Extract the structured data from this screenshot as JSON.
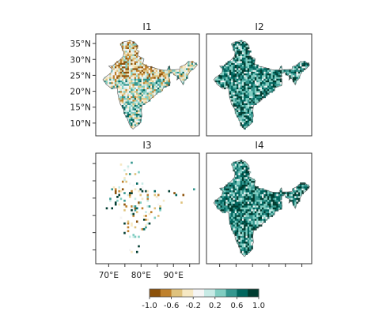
{
  "panels": [
    {
      "id": "I1",
      "title": "I1",
      "style": "mixed"
    },
    {
      "id": "I2",
      "title": "I2",
      "style": "teal"
    },
    {
      "id": "I3",
      "title": "I3",
      "style": "sparse"
    },
    {
      "id": "I4",
      "title": "I4",
      "style": "teal"
    }
  ],
  "axes": {
    "y_ticks": [
      "35°N",
      "30°N",
      "25°N",
      "20°N",
      "15°N",
      "10°N"
    ],
    "x_ticks": [
      "70°E",
      "80°E",
      "90°E"
    ]
  },
  "legend": {
    "ticks": [
      "-1.0",
      "-0.6",
      "-0.2",
      "0.2",
      "0.6",
      "1.0"
    ],
    "range": [
      -1.0,
      1.0
    ],
    "colors": [
      "#8c510a",
      "#bf812d",
      "#dfc27d",
      "#f6e8c3",
      "#f5f5f5",
      "#c7eae5",
      "#80cdc1",
      "#35978f",
      "#01665e",
      "#003c30"
    ]
  },
  "colors": {
    "frame": "#333333",
    "state_border": "#555555"
  }
}
